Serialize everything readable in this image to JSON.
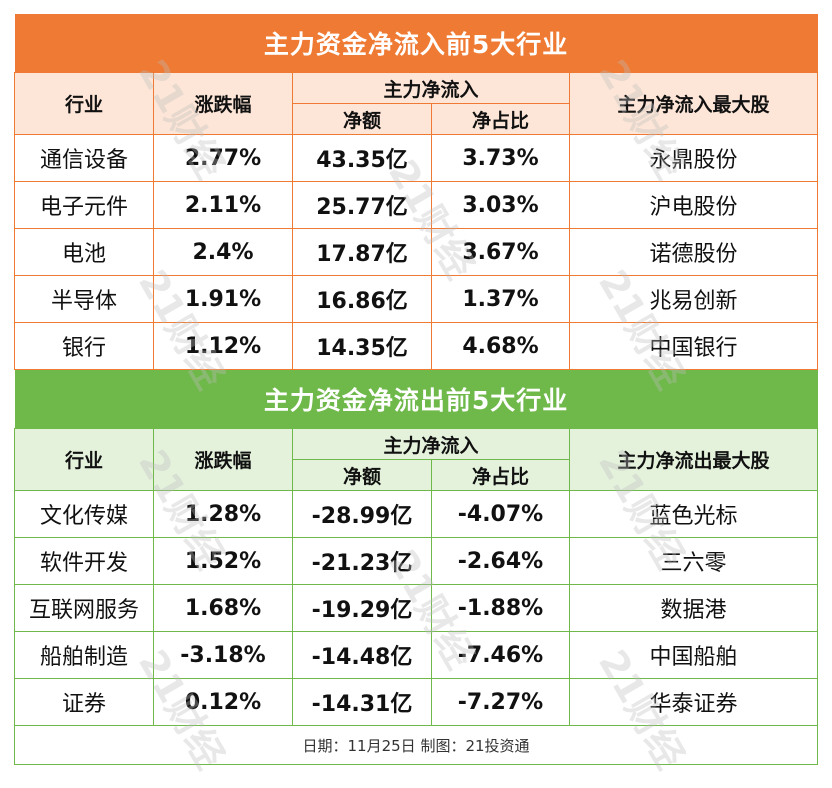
{
  "inflow": {
    "title": "主力资金净流入前5大行业",
    "headers": {
      "industry": "行业",
      "change": "涨跌幅",
      "flow_group": "主力净流入",
      "net_amount": "净额",
      "net_ratio": "净占比",
      "top_stock": "主力净流入最大股"
    },
    "rows": [
      {
        "industry": "通信设备",
        "change": "2.77%",
        "net_amount": "43.35亿",
        "net_ratio": "3.73%",
        "top_stock": "永鼎股份"
      },
      {
        "industry": "电子元件",
        "change": "2.11%",
        "net_amount": "25.77亿",
        "net_ratio": "3.03%",
        "top_stock": "沪电股份"
      },
      {
        "industry": "电池",
        "change": "2.4%",
        "net_amount": "17.87亿",
        "net_ratio": "3.67%",
        "top_stock": "诺德股份"
      },
      {
        "industry": "半导体",
        "change": "1.91%",
        "net_amount": "16.86亿",
        "net_ratio": "1.37%",
        "top_stock": "兆易创新"
      },
      {
        "industry": "银行",
        "change": "1.12%",
        "net_amount": "14.35亿",
        "net_ratio": "4.68%",
        "top_stock": "中国银行"
      }
    ]
  },
  "outflow": {
    "title": "主力资金净流出前5大行业",
    "headers": {
      "industry": "行业",
      "change": "涨跌幅",
      "flow_group": "主力净流入",
      "net_amount": "净额",
      "net_ratio": "净占比",
      "top_stock": "主力净流出最大股"
    },
    "rows": [
      {
        "industry": "文化传媒",
        "change": "1.28%",
        "net_amount": "-28.99亿",
        "net_ratio": "-4.07%",
        "top_stock": "蓝色光标"
      },
      {
        "industry": "软件开发",
        "change": "1.52%",
        "net_amount": "-21.23亿",
        "net_ratio": "-2.64%",
        "top_stock": "三六零"
      },
      {
        "industry": "互联网服务",
        "change": "1.68%",
        "net_amount": "-19.29亿",
        "net_ratio": "-1.88%",
        "top_stock": "数据港"
      },
      {
        "industry": "船舶制造",
        "change": "-3.18%",
        "net_amount": "-14.48亿",
        "net_ratio": "-7.46%",
        "top_stock": "中国船舶"
      },
      {
        "industry": "证券",
        "change": "0.12%",
        "net_amount": "-14.31亿",
        "net_ratio": "-7.27%",
        "top_stock": "华泰证券"
      }
    ]
  },
  "footer": "日期：11月25日 制图：21投资通",
  "watermark": "21财经",
  "colors": {
    "inflow_accent": "#ef7a33",
    "outflow_accent": "#6fb84a"
  }
}
